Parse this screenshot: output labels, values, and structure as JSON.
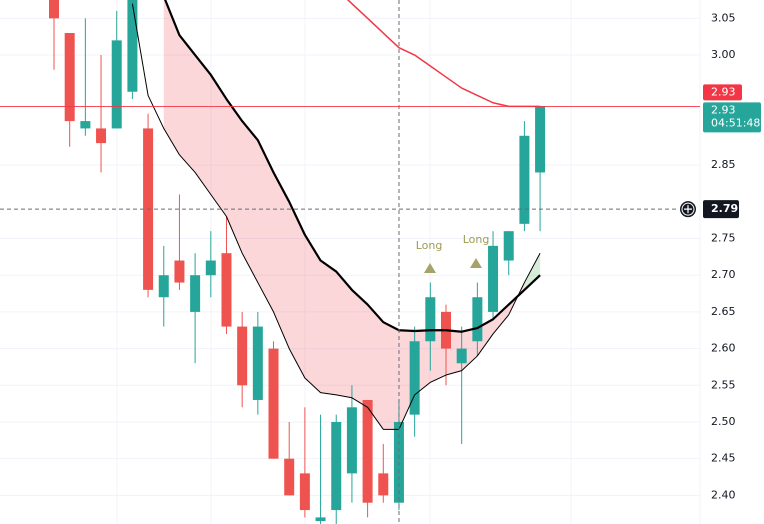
{
  "chart_data": {
    "type": "candlestick",
    "up_color": "#26a69a",
    "down_color": "#ef5350",
    "open": [
      3.08,
      3.03,
      2.9,
      2.9,
      2.9,
      2.95,
      2.9,
      2.67,
      2.72,
      2.65,
      2.7,
      2.73,
      2.63,
      2.53,
      2.6,
      2.45,
      2.43,
      2.365,
      2.38,
      2.43,
      2.53,
      2.43,
      2.39,
      2.51,
      2.61,
      2.65,
      2.58,
      2.61,
      2.65,
      2.72,
      2.77,
      2.84
    ],
    "high": [
      3.09,
      3.03,
      3.05,
      3.0,
      3.06,
      3.09,
      2.92,
      2.74,
      2.81,
      2.73,
      2.76,
      2.78,
      2.65,
      2.65,
      2.61,
      2.5,
      2.52,
      2.51,
      2.51,
      2.55,
      2.53,
      2.47,
      2.53,
      2.63,
      2.69,
      2.66,
      2.63,
      2.69,
      2.76,
      2.76,
      2.91,
      2.93
    ],
    "low": [
      2.98,
      2.875,
      2.89,
      2.84,
      2.9,
      2.94,
      2.67,
      2.63,
      2.68,
      2.58,
      2.67,
      2.62,
      2.52,
      2.51,
      2.45,
      2.4,
      2.37,
      2.36,
      2.36,
      2.39,
      2.37,
      2.39,
      2.38,
      2.48,
      2.57,
      2.55,
      2.47,
      2.59,
      2.64,
      2.7,
      2.76,
      2.76
    ],
    "close": [
      3.05,
      2.91,
      2.91,
      2.88,
      3.02,
      3.09,
      2.68,
      2.7,
      2.69,
      2.7,
      2.72,
      2.63,
      2.55,
      2.63,
      2.45,
      2.4,
      2.38,
      2.37,
      2.5,
      2.52,
      2.39,
      2.4,
      2.5,
      2.61,
      2.67,
      2.6,
      2.6,
      2.67,
      2.74,
      2.76,
      2.89,
      2.93
    ],
    "lines": [
      {
        "color": "#f23645",
        "width": 1.5,
        "values": [
          null,
          null,
          null,
          null,
          null,
          null,
          null,
          null,
          null,
          null,
          null,
          null,
          null,
          null,
          null,
          null,
          null,
          null,
          3.09,
          3.07,
          3.05,
          3.03,
          3.01,
          3.0,
          2.985,
          2.97,
          2.955,
          2.945,
          2.935,
          2.93,
          2.93,
          2.93
        ]
      },
      {
        "color": "#000000",
        "width": 2.2,
        "values": [
          null,
          null,
          null,
          null,
          null,
          null,
          null,
          3.08,
          3.027,
          3.0,
          2.973,
          2.94,
          2.91,
          2.884,
          2.84,
          2.8,
          2.755,
          2.72,
          2.705,
          2.68,
          2.66,
          2.636,
          2.625,
          2.624,
          2.625,
          2.625,
          2.623,
          2.628,
          2.64,
          2.66,
          2.68,
          2.7
        ]
      },
      {
        "color": "#000000",
        "width": 1,
        "values": [
          null,
          null,
          null,
          null,
          null,
          3.07,
          2.945,
          2.9,
          2.864,
          2.84,
          2.81,
          2.78,
          2.73,
          2.69,
          2.65,
          2.6,
          2.56,
          2.54,
          2.537,
          2.533,
          2.52,
          2.49,
          2.49,
          2.537,
          2.554,
          2.564,
          2.57,
          2.59,
          2.62,
          2.646,
          2.69,
          2.73
        ]
      }
    ],
    "ylim": [
      2.361,
      3.075
    ],
    "yticks": [
      3.05,
      {
        "value": 3,
        "label": "3.00"
      },
      2.85,
      2.75,
      {
        "value": 2.7,
        "label": "2.70"
      },
      2.65,
      {
        "value": 2.6,
        "label": "2.60"
      },
      2.55,
      {
        "value": 2.5,
        "label": "2.50"
      },
      2.45,
      {
        "value": 2.4,
        "label": "2.40"
      }
    ],
    "grid": true,
    "ma_price": 2.93,
    "last_price": 2.93,
    "countdown": "04:51:48",
    "crosshair_price": 2.79,
    "annotations": [
      "Long",
      "Long"
    ]
  }
}
